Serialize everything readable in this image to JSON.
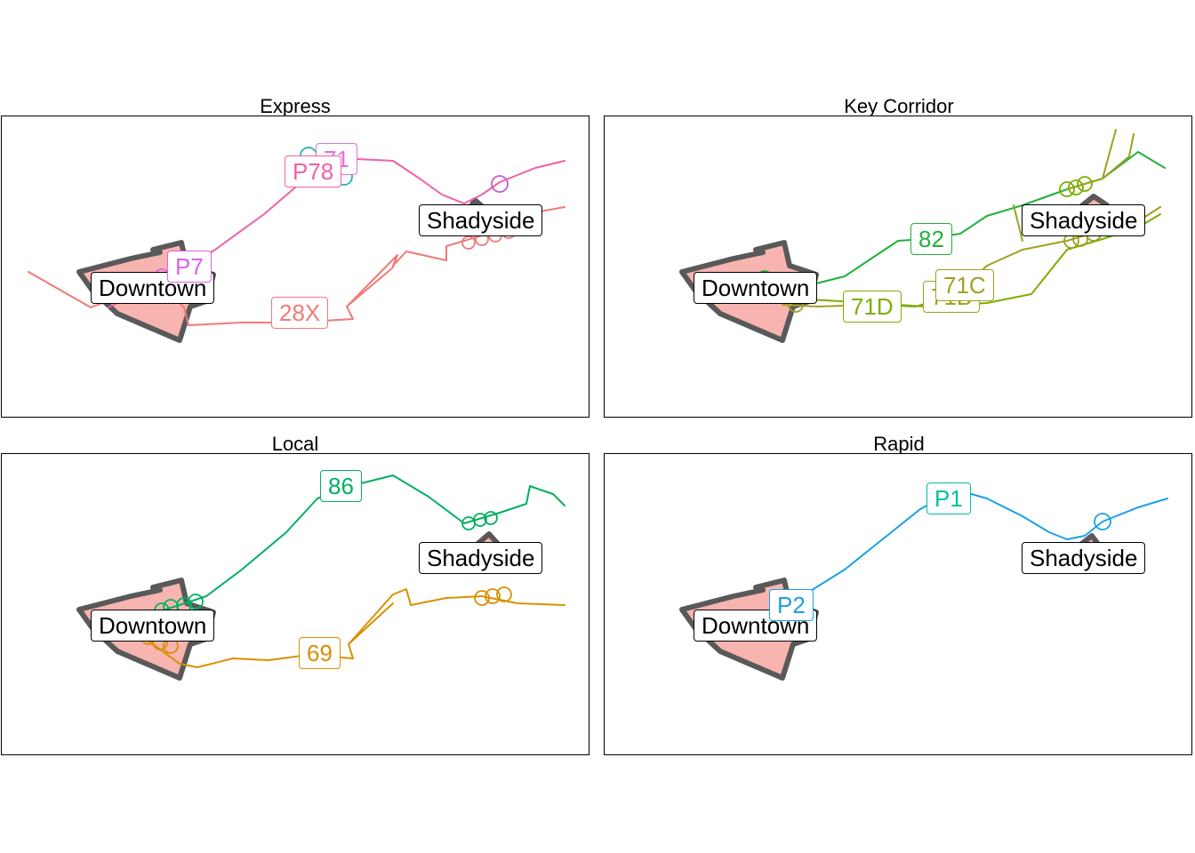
{
  "panels": [
    {
      "title": "Express",
      "places": [
        "Downtown",
        "Shadyside"
      ],
      "routes": [
        {
          "label": "28X",
          "color": "#f07a78"
        },
        {
          "label": "P78",
          "color": "#f060a8"
        },
        {
          "label": "71",
          "color": "#e070d8"
        },
        {
          "label": "P7",
          "color": "#e060e8"
        }
      ]
    },
    {
      "title": "Key Corridor",
      "places": [
        "Downtown",
        "Shadyside"
      ],
      "routes": [
        {
          "label": "82",
          "color": "#22b03a"
        },
        {
          "label": "71C",
          "color": "#a0a020"
        },
        {
          "label": "71D",
          "color": "#7cae00"
        },
        {
          "label": "71B",
          "color": "#a0a020"
        }
      ]
    },
    {
      "title": "Local",
      "places": [
        "Downtown",
        "Shadyside"
      ],
      "routes": [
        {
          "label": "86",
          "color": "#00b060"
        },
        {
          "label": "69",
          "color": "#d89000"
        }
      ]
    },
    {
      "title": "Rapid",
      "places": [
        "Downtown",
        "Shadyside"
      ],
      "routes": [
        {
          "label": "P1",
          "color": "#00bfa0"
        },
        {
          "label": "P2",
          "color": "#1aa0e8"
        }
      ]
    }
  ]
}
